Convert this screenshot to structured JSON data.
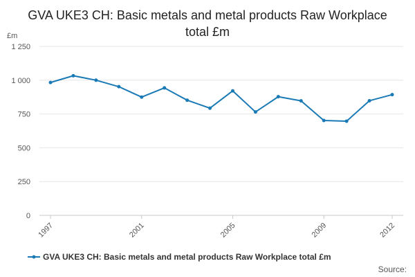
{
  "chart_data": {
    "type": "line",
    "title": "GVA UKE3 CH: Basic metals and metal products Raw Workplace total £m",
    "ylabel": "£m",
    "xlabel": "",
    "x": [
      1997,
      1998,
      1999,
      2000,
      2001,
      2002,
      2003,
      2004,
      2005,
      2006,
      2007,
      2008,
      2009,
      2010,
      2011,
      2012
    ],
    "x_tick_labels": [
      "1997",
      "2001",
      "2005",
      "2009",
      "2012"
    ],
    "x_tick_values": [
      1997,
      2001,
      2005,
      2009,
      2012
    ],
    "y_tick_values": [
      0,
      250,
      500,
      750,
      1000,
      1250
    ],
    "y_tick_labels": [
      "0",
      "250",
      "500",
      "750",
      "1 000",
      "1 250"
    ],
    "ylim": [
      0,
      1250
    ],
    "grid": true,
    "legend_position": "bottom",
    "series": [
      {
        "name": "GVA UKE3 CH: Basic metals and metal products Raw Workplace total £m",
        "color": "#1a7ab5",
        "values": [
          983,
          1033,
          1000,
          952,
          875,
          943,
          852,
          793,
          921,
          765,
          878,
          847,
          702,
          697,
          848,
          893
        ]
      }
    ]
  },
  "source_label": "Source:"
}
